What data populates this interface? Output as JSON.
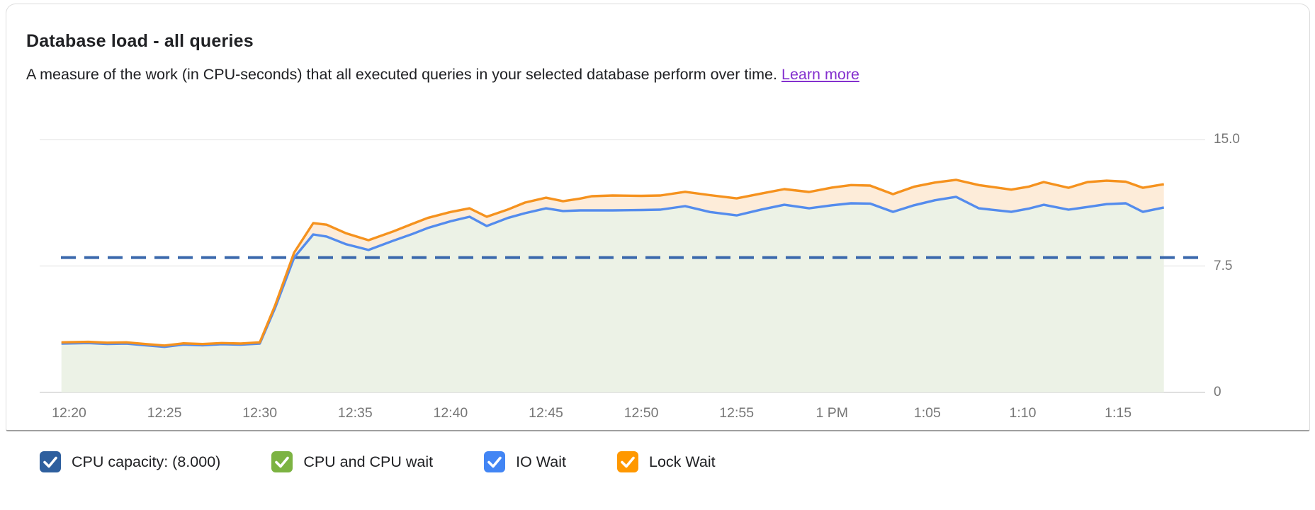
{
  "card": {
    "title": "Database load - all queries",
    "subtitle": "A measure of the work (in CPU-seconds) that all executed queries in your selected database perform over time.",
    "learn_more_label": "Learn more"
  },
  "legend": {
    "items": [
      {
        "label": "CPU capacity: (8.000)",
        "color": "#2e5f9e"
      },
      {
        "label": "CPU and CPU wait",
        "color": "#7cb342"
      },
      {
        "label": "IO Wait",
        "color": "#4285f4"
      },
      {
        "label": "Lock Wait",
        "color": "#ff9800"
      }
    ]
  },
  "chart_data": {
    "type": "area",
    "title": "Database load - all queries",
    "grid": "horizontal",
    "legend_position": "bottom",
    "x_tick_labels": [
      "12:20",
      "12:25",
      "12:30",
      "12:35",
      "12:40",
      "12:45",
      "12:50",
      "12:55",
      "1 PM",
      "1:05",
      "1:10",
      "1:15"
    ],
    "x_tick_interval_min": 5,
    "y_tick_labels": [
      "15.0",
      "7.5",
      "0"
    ],
    "y_tick_values": [
      15,
      7.5,
      0
    ],
    "ylim": [
      0,
      15
    ],
    "capacity_line": {
      "label": "CPU capacity: (8.000)",
      "value": 8.0,
      "style": "dashed",
      "color": "#3a68ac"
    },
    "t_unit": "minutes after 12:00 PM",
    "t_min_after_noon": [
      19.6,
      21,
      22,
      23,
      24,
      25,
      26,
      27,
      28,
      29,
      30,
      30.8,
      31.8,
      32.8,
      33.5,
      34.5,
      35.7,
      37,
      38,
      38.8,
      40,
      41,
      41.9,
      43,
      43.9,
      45,
      45.9,
      46.8,
      47.4,
      48.5,
      50,
      51,
      52.3,
      53.6,
      55,
      56.3,
      57.5,
      58.8,
      60,
      61,
      62,
      63.2,
      64.3,
      65.4,
      66.5,
      67.7,
      69.4,
      70.3,
      71.1,
      72.4,
      73.4,
      74.4,
      75.4,
      76.3,
      77.4
    ],
    "series": [
      {
        "name": "CPU and CPU wait",
        "color": "#7cb342",
        "fill": "#ecf2e6",
        "values": [
          2.9,
          2.93,
          2.88,
          2.9,
          2.8,
          2.7,
          2.84,
          2.8,
          2.86,
          2.83,
          2.9,
          5.0,
          8.0,
          9.37,
          9.25,
          8.8,
          8.45,
          9.0,
          9.4,
          9.75,
          10.15,
          10.42,
          9.87,
          10.35,
          10.63,
          10.92,
          10.76,
          10.8,
          10.8,
          10.8,
          10.82,
          10.84,
          11.05,
          10.7,
          10.5,
          10.85,
          11.13,
          10.92,
          11.1,
          11.22,
          11.2,
          10.71,
          11.1,
          11.4,
          11.6,
          10.92,
          10.71,
          10.9,
          11.13,
          10.84,
          11.0,
          11.17,
          11.22,
          10.71,
          10.97
        ]
      },
      {
        "name": "IO Wait",
        "color": "#4285f4",
        "line_color": "#548ced",
        "values": [
          2.9,
          2.93,
          2.88,
          2.9,
          2.8,
          2.7,
          2.84,
          2.8,
          2.86,
          2.83,
          2.9,
          5.0,
          8.0,
          9.37,
          9.25,
          8.8,
          8.45,
          9.0,
          9.4,
          9.75,
          10.15,
          10.42,
          9.87,
          10.35,
          10.63,
          10.92,
          10.76,
          10.8,
          10.8,
          10.8,
          10.82,
          10.84,
          11.05,
          10.7,
          10.5,
          10.85,
          11.13,
          10.92,
          11.1,
          11.22,
          11.2,
          10.71,
          11.1,
          11.4,
          11.6,
          10.92,
          10.71,
          10.9,
          11.13,
          10.84,
          11.0,
          11.17,
          11.22,
          10.71,
          10.97
        ]
      },
      {
        "name": "Lock Wait",
        "color": "#ff9800",
        "line_color": "#f5921e",
        "fill": "#fdecd9",
        "values": [
          2.97,
          3.0,
          2.95,
          2.97,
          2.87,
          2.78,
          2.91,
          2.87,
          2.93,
          2.9,
          2.97,
          5.15,
          8.3,
          10.04,
          9.95,
          9.45,
          9.03,
          9.55,
          10.0,
          10.35,
          10.7,
          10.92,
          10.42,
          10.85,
          11.26,
          11.55,
          11.34,
          11.5,
          11.64,
          11.68,
          11.66,
          11.68,
          11.9,
          11.7,
          11.51,
          11.8,
          12.06,
          11.89,
          12.15,
          12.3,
          12.27,
          11.76,
          12.2,
          12.45,
          12.61,
          12.3,
          12.03,
          12.2,
          12.48,
          12.14,
          12.48,
          12.56,
          12.5,
          12.14,
          12.35
        ]
      }
    ]
  }
}
